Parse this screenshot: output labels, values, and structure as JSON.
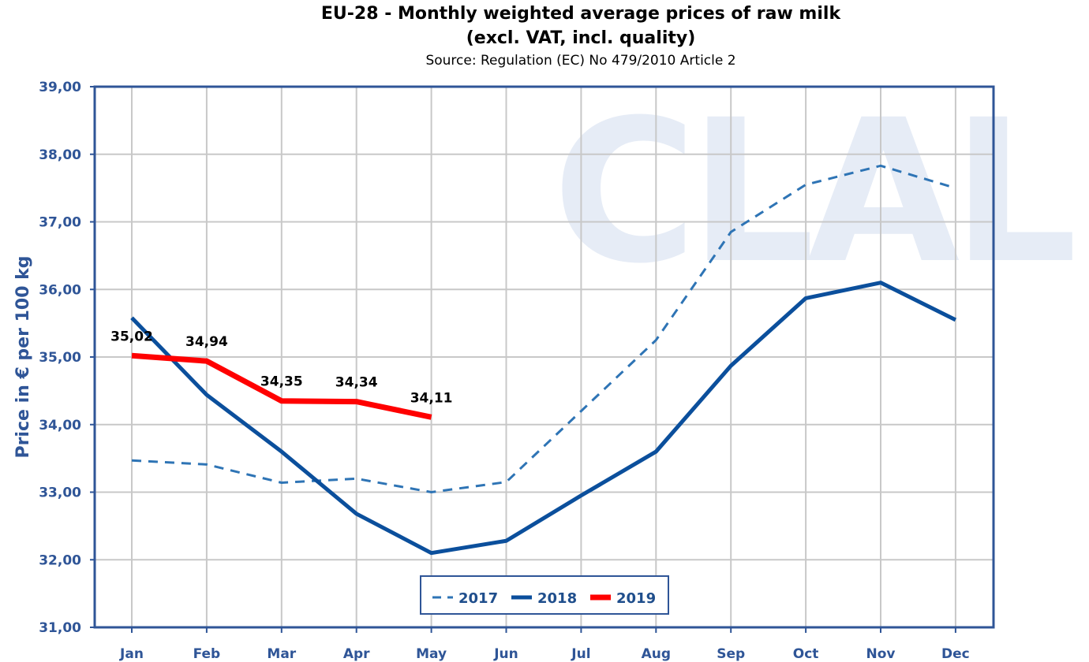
{
  "chart_data": {
    "type": "line",
    "title_line1": "EU-28 - Monthly weighted average prices of raw milk",
    "title_line2": "(excl. VAT, incl. quality)",
    "subtitle": "Source: Regulation (EC) No 479/2010 Article 2",
    "ylabel": "Price in € per 100 kg",
    "xlabel": "",
    "ylim": [
      31,
      39
    ],
    "yticks": [
      31,
      32,
      33,
      34,
      35,
      36,
      37,
      38,
      39
    ],
    "yticks_labels": [
      "31,00",
      "32,00",
      "33,00",
      "34,00",
      "35,00",
      "36,00",
      "37,00",
      "38,00",
      "39,00"
    ],
    "categories": [
      "Jan",
      "Feb",
      "Mar",
      "Apr",
      "May",
      "Jun",
      "Jul",
      "Aug",
      "Sep",
      "Oct",
      "Nov",
      "Dec"
    ],
    "grid": true,
    "legend_position": "bottom-center",
    "watermark": "CLAL",
    "series": [
      {
        "name": "2017",
        "style": "dashed",
        "color": "#2e74b5",
        "values": [
          33.47,
          33.41,
          33.14,
          33.2,
          33.0,
          33.15,
          34.2,
          35.25,
          36.85,
          37.55,
          37.83,
          37.5
        ]
      },
      {
        "name": "2018",
        "style": "solid",
        "color": "#0b4f9c",
        "values": [
          35.58,
          34.44,
          33.6,
          32.68,
          32.1,
          32.28,
          32.95,
          33.6,
          34.87,
          35.87,
          36.1,
          35.55
        ]
      },
      {
        "name": "2019",
        "style": "solid-thick",
        "color": "#ff0000",
        "values": [
          35.02,
          34.94,
          34.35,
          34.34,
          34.11,
          null,
          null,
          null,
          null,
          null,
          null,
          null
        ],
        "data_labels": [
          "35,02",
          "34,94",
          "34,35",
          "34,34",
          "34,11"
        ]
      }
    ]
  }
}
